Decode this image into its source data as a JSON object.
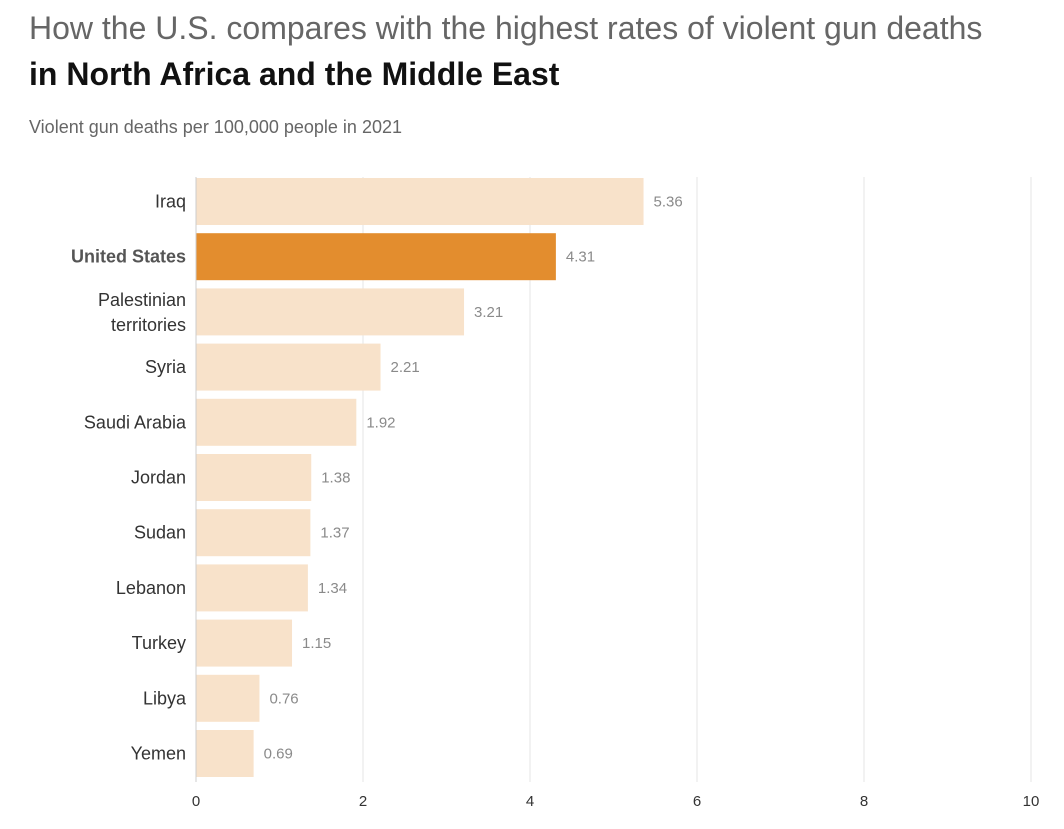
{
  "header": {
    "title_line1": "How the U.S. compares with the highest rates of violent gun deaths",
    "title_line2": "in North Africa and the Middle East",
    "subtitle": "Violent gun deaths per 100,000 people in 2021"
  },
  "chart_data": {
    "type": "bar",
    "orientation": "horizontal",
    "categories": [
      [
        "Iraq"
      ],
      [
        "United States"
      ],
      [
        "Palestinian",
        "territories"
      ],
      [
        "Syria"
      ],
      [
        "Saudi Arabia"
      ],
      [
        "Jordan"
      ],
      [
        "Sudan"
      ],
      [
        "Lebanon"
      ],
      [
        "Turkey"
      ],
      [
        "Libya"
      ],
      [
        "Yemen"
      ]
    ],
    "values": [
      5.36,
      4.31,
      3.21,
      2.21,
      1.92,
      1.38,
      1.37,
      1.34,
      1.15,
      0.76,
      0.69
    ],
    "value_labels": [
      "5.36",
      "4.31",
      "3.21",
      "2.21",
      "1.92",
      "1.38",
      "1.37",
      "1.34",
      "1.15",
      "0.76",
      "0.69"
    ],
    "highlight": "United States",
    "xlim": [
      0,
      10
    ],
    "xticks": [
      0,
      2,
      4,
      6,
      8,
      10
    ],
    "grid": true,
    "colors": {
      "bar": "#f8e2ca",
      "highlight": "#e38d2e",
      "grid": "#e6e6e6"
    }
  }
}
